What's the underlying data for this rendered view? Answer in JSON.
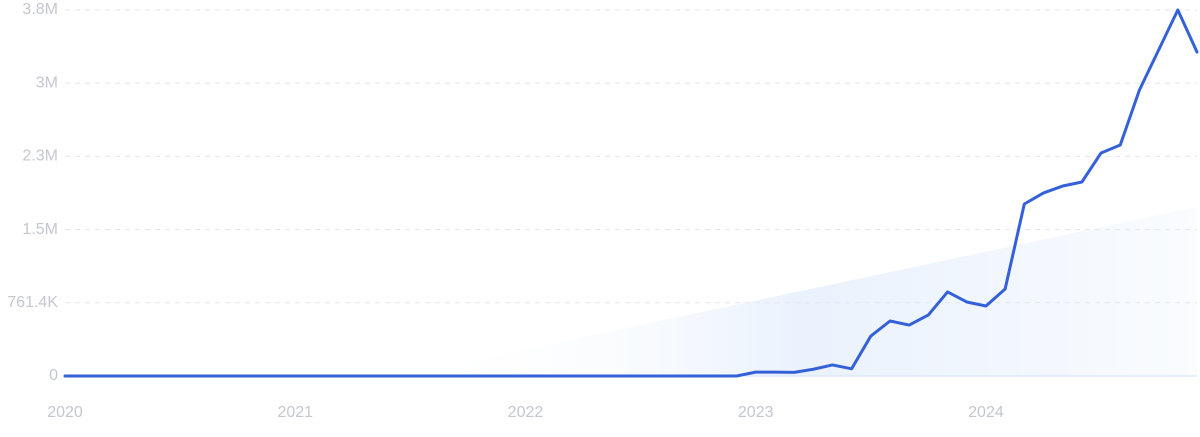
{
  "chart_data": {
    "type": "line",
    "categories": [
      "2020",
      null,
      null,
      null,
      null,
      null,
      null,
      null,
      null,
      null,
      null,
      null,
      "2021",
      null,
      null,
      null,
      null,
      null,
      null,
      null,
      null,
      null,
      null,
      null,
      "2022",
      null,
      null,
      null,
      null,
      null,
      null,
      null,
      null,
      null,
      null,
      null,
      "2023",
      null,
      null,
      null,
      null,
      null,
      null,
      null,
      null,
      null,
      null,
      null,
      "2024",
      null,
      null,
      null,
      null,
      null,
      null,
      null,
      null,
      null,
      null,
      null
    ],
    "series": [
      {
        "color": "#3461d9",
        "values": [
          0,
          0,
          0,
          0,
          0,
          0,
          0,
          0,
          0,
          0,
          0,
          0,
          0,
          0,
          0,
          0,
          0,
          0,
          0,
          0,
          0,
          0,
          0,
          0,
          0,
          0,
          0,
          0,
          0,
          0,
          0,
          0,
          0,
          0,
          0,
          0,
          40000,
          40000,
          38000,
          70000,
          115000,
          75000,
          416000,
          572000,
          530000,
          635000,
          874000,
          770000,
          728000,
          905000,
          1789000,
          1904000,
          1976000,
          2018000,
          2320000,
          2403000,
          2975000,
          3391000,
          3807000,
          3370000
        ]
      }
    ],
    "trend": {
      "color": "#dce9fb",
      "values": [
        null,
        null,
        null,
        null,
        null,
        null,
        null,
        null,
        null,
        null,
        null,
        null,
        null,
        null,
        null,
        null,
        null,
        null,
        21000,
        63400,
        105800,
        148200,
        190600,
        233000,
        275400,
        317800,
        360200,
        402600,
        445000,
        487400,
        529800,
        572200,
        614600,
        657000,
        699400,
        741800,
        784200,
        826600,
        869000,
        911400,
        953800,
        996200,
        1038600,
        1081000,
        1123400,
        1165800,
        1208200,
        1250600,
        1293000,
        1335400,
        1377800,
        1420200,
        1462600,
        1505000,
        1547400,
        1589800,
        1632200,
        1674600,
        1717000,
        1759400
      ]
    },
    "ylim": [
      0,
      3807000
    ],
    "yticks": [
      0,
      {
        "value": 761400,
        "label": "761.4K"
      },
      {
        "value": 1522800,
        "label": "1.5M"
      },
      {
        "value": 2284200,
        "label": "2.3M"
      },
      {
        "value": 3045600,
        "label": "3M"
      },
      {
        "value": 3807000,
        "label": "3.8M"
      }
    ],
    "grid": true
  }
}
